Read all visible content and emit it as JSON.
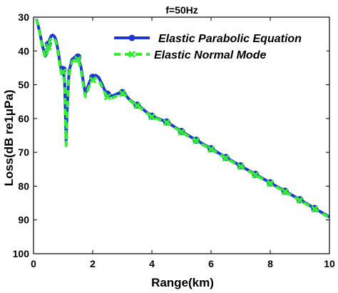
{
  "chart_data": {
    "type": "line",
    "title": "f=50Hz",
    "xlabel": "Range(km)",
    "ylabel": "Loss(dB re1μPa)",
    "xlim": [
      0,
      10
    ],
    "ylim": [
      100,
      30
    ],
    "y_inverted": true,
    "grid": false,
    "legend_position": "top-right",
    "x_ticks": [
      0,
      2,
      4,
      6,
      8,
      10
    ],
    "y_ticks": [
      30,
      40,
      50,
      60,
      70,
      80,
      90,
      100
    ],
    "series": [
      {
        "name": "Elastic Parabolic Equation",
        "color": "#1f35d6",
        "line_style": "solid",
        "marker": "circle",
        "x": [
          0.1,
          0.2,
          0.3,
          0.4,
          0.45,
          0.5,
          0.55,
          0.6,
          0.65,
          0.7,
          0.75,
          0.8,
          0.85,
          0.9,
          0.95,
          1.0,
          1.05,
          1.1,
          1.15,
          1.2,
          1.3,
          1.4,
          1.5,
          1.6,
          1.7,
          1.75,
          1.8,
          1.9,
          2.0,
          2.1,
          2.2,
          2.3,
          2.4,
          2.5,
          2.6,
          2.7,
          2.8,
          2.9,
          3.0,
          3.1,
          3.2,
          3.4,
          3.6,
          3.8,
          4.0,
          4.5,
          5.0,
          5.5,
          6.0,
          6.5,
          7.0,
          7.5,
          8.0,
          8.5,
          9.0,
          9.5,
          10.0
        ],
        "values": [
          30.5,
          34.0,
          38.5,
          41.5,
          40.5,
          38.0,
          36.5,
          35.5,
          35.3,
          35.6,
          36.5,
          38.5,
          41.0,
          44.0,
          46.0,
          45.5,
          49.0,
          66.5,
          55.0,
          46.0,
          42.5,
          41.8,
          41.8,
          44.5,
          50.0,
          52.5,
          51.5,
          49.0,
          47.8,
          47.2,
          47.8,
          49.5,
          51.5,
          52.8,
          53.3,
          53.2,
          52.8,
          52.4,
          52.3,
          52.8,
          54.0,
          55.5,
          56.5,
          58.0,
          59.3,
          61.0,
          63.8,
          66.4,
          68.9,
          71.5,
          74.0,
          76.5,
          79.0,
          81.5,
          84.0,
          86.6,
          89.1
        ],
        "markers_x": [
          0.5,
          1.0,
          1.5,
          2.0,
          2.5,
          3.0,
          3.5,
          4.0,
          4.5,
          5.0,
          5.5,
          6.0,
          6.5,
          7.0,
          7.5,
          8.0,
          8.5,
          9.0,
          9.5
        ]
      },
      {
        "name": "Elastic Normal Mode",
        "color": "#33ee33",
        "line_style": "dashed",
        "marker": "x",
        "x": [
          0.1,
          0.2,
          0.3,
          0.4,
          0.45,
          0.5,
          0.55,
          0.6,
          0.65,
          0.7,
          0.75,
          0.8,
          0.85,
          0.9,
          0.95,
          1.0,
          1.05,
          1.1,
          1.15,
          1.2,
          1.3,
          1.4,
          1.5,
          1.6,
          1.7,
          1.75,
          1.8,
          1.9,
          2.0,
          2.1,
          2.2,
          2.3,
          2.4,
          2.5,
          2.6,
          2.7,
          2.8,
          2.9,
          3.0,
          3.1,
          3.2,
          3.4,
          3.6,
          3.8,
          4.0,
          4.5,
          5.0,
          5.5,
          6.0,
          6.5,
          7.0,
          7.5,
          8.0,
          8.5,
          9.0,
          9.5,
          10.0
        ],
        "values": [
          30.6,
          34.2,
          39.0,
          42.0,
          41.0,
          38.8,
          37.2,
          36.2,
          36.0,
          36.3,
          37.2,
          39.2,
          41.8,
          44.8,
          46.8,
          46.2,
          50.0,
          68.0,
          56.0,
          47.0,
          43.2,
          42.5,
          42.5,
          45.3,
          51.0,
          53.5,
          52.5,
          50.0,
          48.6,
          48.0,
          48.6,
          50.3,
          52.2,
          53.6,
          54.0,
          53.8,
          53.3,
          52.8,
          52.6,
          53.1,
          54.2,
          55.7,
          56.7,
          58.2,
          59.5,
          61.2,
          64.0,
          66.6,
          69.1,
          71.7,
          74.2,
          76.7,
          79.2,
          81.7,
          84.2,
          86.8,
          89.3
        ],
        "markers_x": [
          0.5,
          1.0,
          1.5,
          2.0,
          2.5,
          3.0,
          3.5,
          4.0,
          4.5,
          5.0,
          5.5,
          6.0,
          6.5,
          7.0,
          7.5,
          8.0,
          8.5,
          9.0,
          9.5
        ]
      }
    ]
  }
}
